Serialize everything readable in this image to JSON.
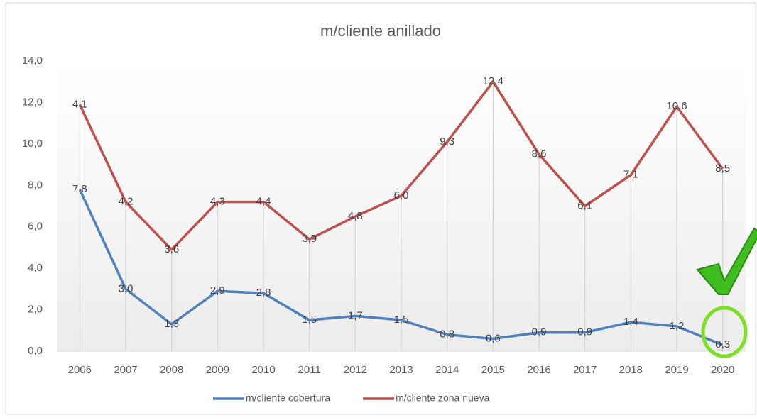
{
  "chart_data": {
    "type": "line",
    "stacked": true,
    "title": "m/cliente anillado",
    "categories": [
      "2006",
      "2007",
      "2008",
      "2009",
      "2010",
      "2011",
      "2012",
      "2013",
      "2014",
      "2015",
      "2016",
      "2017",
      "2018",
      "2019",
      "2020"
    ],
    "series": [
      {
        "name": "m/cliente cobertura",
        "color": "#4f81bd",
        "values": [
          7.8,
          3.0,
          1.3,
          2.9,
          2.8,
          1.5,
          1.7,
          1.5,
          0.8,
          0.6,
          0.9,
          0.9,
          1.4,
          1.2,
          0.3
        ],
        "value_labels": [
          "7,8",
          "3,0",
          "1,3",
          "2,9",
          "2,8",
          "1,5",
          "1,7",
          "1,5",
          "0,8",
          "0,6",
          "0,9",
          "0,9",
          "1,4",
          "1,2",
          "0,3"
        ]
      },
      {
        "name": "m/cliente zona nueva",
        "color": "#c0504d",
        "values": [
          4.1,
          4.2,
          3.6,
          4.3,
          4.4,
          3.9,
          4.8,
          6.0,
          9.3,
          12.4,
          8.6,
          6.1,
          7.1,
          10.6,
          8.5
        ],
        "value_labels": [
          "4,1",
          "4,2",
          "3,6",
          "4,3",
          "4,4",
          "3,9",
          "4,8",
          "6,0",
          "9,3",
          "12,4",
          "8,6",
          "6,1",
          "7,1",
          "10,6",
          "8,5"
        ]
      }
    ],
    "ylim": [
      0,
      14
    ],
    "yticks": [
      {
        "value": 0,
        "label": "0,0"
      },
      {
        "value": 2,
        "label": "2,0"
      },
      {
        "value": 4,
        "label": "4,0"
      },
      {
        "value": 6,
        "label": "6,0"
      },
      {
        "value": 8,
        "label": "8,0"
      },
      {
        "value": 10,
        "label": "10,0"
      },
      {
        "value": 12,
        "label": "12,0"
      },
      {
        "value": 14,
        "label": "14,0"
      }
    ],
    "legend": "bottom"
  }
}
